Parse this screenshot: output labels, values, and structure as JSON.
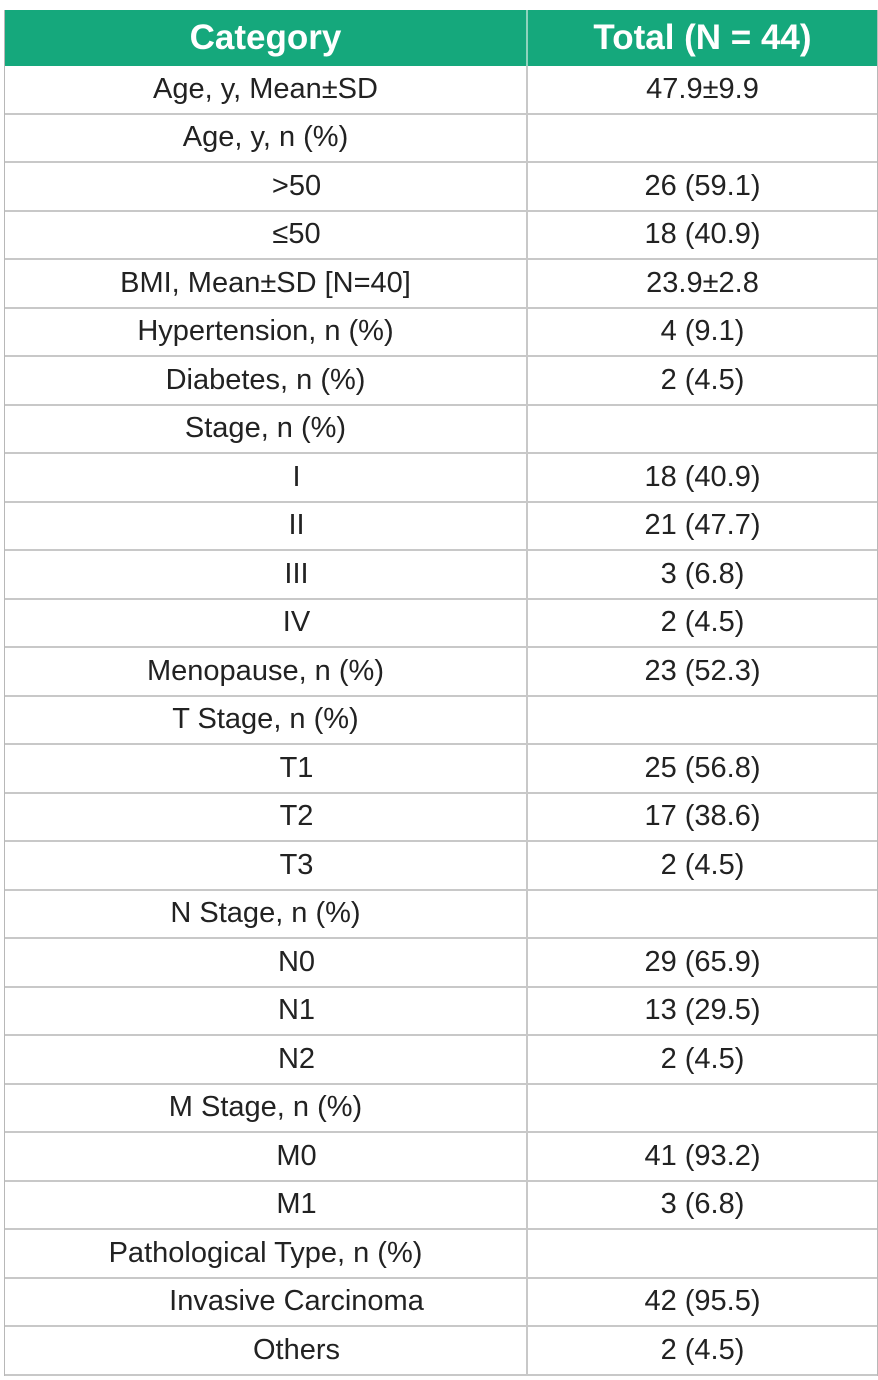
{
  "table": {
    "header": [
      "Category",
      "Total (N = 44)"
    ],
    "rows": [
      {
        "label": "Age, y, Mean±SD",
        "value": "47.9±9.9"
      },
      {
        "label": "Age, y, n (%)",
        "items": [
          {
            "label": ">50",
            "value": "26 (59.1)"
          },
          {
            "label": "≤50",
            "value": "18 (40.9)"
          }
        ]
      },
      {
        "label": "BMI, Mean±SD [N=40]",
        "value": "23.9±2.8"
      },
      {
        "label": "Hypertension, n (%)",
        "value": "4 (9.1)"
      },
      {
        "label": "Diabetes, n (%)",
        "value": "2 (4.5)"
      },
      {
        "label": "Stage, n (%)",
        "items": [
          {
            "label": "I",
            "value": "18 (40.9)"
          },
          {
            "label": "II",
            "value": "21 (47.7)"
          },
          {
            "label": "III",
            "value": "3 (6.8)"
          },
          {
            "label": "IV",
            "value": "2 (4.5)"
          }
        ]
      },
      {
        "label": "Menopause, n (%)",
        "value": "23 (52.3)"
      },
      {
        "label": "T Stage, n (%)",
        "items": [
          {
            "label": "T1",
            "value": "25 (56.8)"
          },
          {
            "label": "T2",
            "value": "17 (38.6)"
          },
          {
            "label": "T3",
            "value": "2 (4.5)"
          }
        ]
      },
      {
        "label": "N Stage, n (%)",
        "items": [
          {
            "label": "N0",
            "value": "29 (65.9)"
          },
          {
            "label": "N1",
            "value": "13 (29.5)"
          },
          {
            "label": "N2",
            "value": "2 (4.5)"
          }
        ]
      },
      {
        "label": "M Stage, n (%)",
        "items": [
          {
            "label": "M0",
            "value": "41 (93.2)"
          },
          {
            "label": "M1",
            "value": "3 (6.8)"
          }
        ]
      },
      {
        "label": "Pathological Type, n (%)",
        "items": [
          {
            "label": "Invasive Carcinoma",
            "value": "42 (95.5)"
          },
          {
            "label": "Others",
            "value": "2 (4.5)"
          }
        ]
      }
    ]
  }
}
